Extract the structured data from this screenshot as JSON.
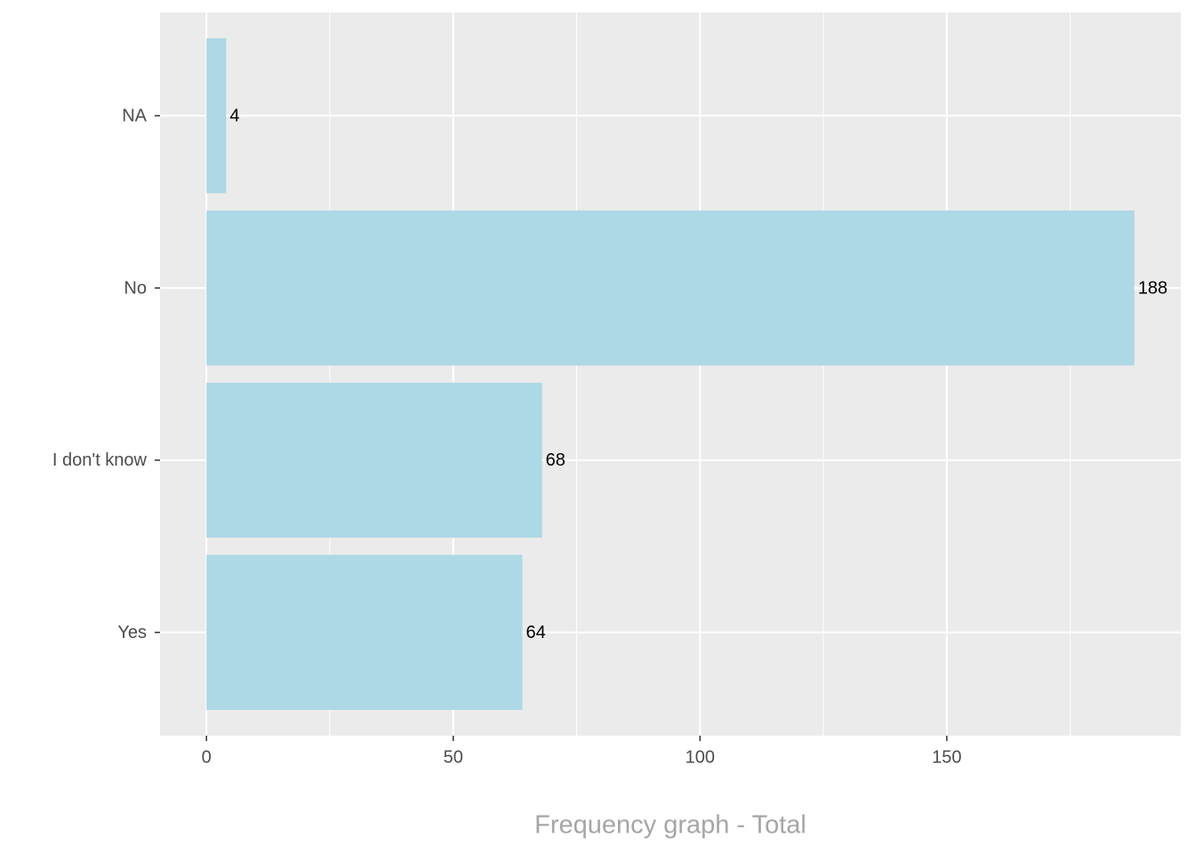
{
  "chart_data": {
    "type": "barh",
    "xlabel": "Frequency graph - Total",
    "categories": [
      "Yes",
      "I don't know",
      "No",
      "NA"
    ],
    "values": [
      64,
      68,
      188,
      4
    ],
    "color": "#add8e6",
    "xlim": [
      -9.4,
      197.4
    ],
    "xticks": [
      0,
      50,
      100,
      150
    ],
    "xminor": [
      25,
      75,
      125,
      175
    ],
    "grid": true
  }
}
